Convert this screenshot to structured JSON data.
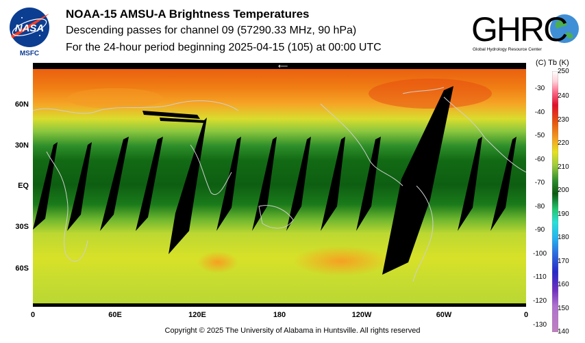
{
  "header": {
    "title": "NOAA-15 AMSU-A Brightness Temperatures",
    "subtitle": "Descending passes for channel 09 (57290.33 MHz, 90 hPa)",
    "period": "For the 24-hour period beginning 2025-04-15 (105) at 00:00 UTC"
  },
  "logos": {
    "nasa_text": "NASA",
    "msfc_text": "MSFC",
    "ghrc_text": "GHRC",
    "ghrc_subtitle": "Global Hydrology Resource Center"
  },
  "map": {
    "lat_labels": [
      "60N",
      "30N",
      "EQ",
      "30S",
      "60S"
    ],
    "lon_labels": [
      "0",
      "60E",
      "120E",
      "180",
      "120W",
      "60W",
      "0"
    ]
  },
  "colorbar": {
    "header": "(C)  Tb  (K)",
    "celsius_ticks": [
      "-30",
      "-40",
      "-50",
      "-60",
      "-70",
      "-80",
      "-90",
      "-100",
      "-110",
      "-120",
      "-130"
    ],
    "kelvin_ticks": [
      "250",
      "240",
      "230",
      "220",
      "210",
      "200",
      "190",
      "180",
      "170",
      "160",
      "150",
      "140"
    ],
    "kelvin_range": [
      140,
      250
    ]
  },
  "footer": {
    "copyright": "Copyright © 2025 The University of Alabama in Huntsville.  All rights reserved"
  }
}
